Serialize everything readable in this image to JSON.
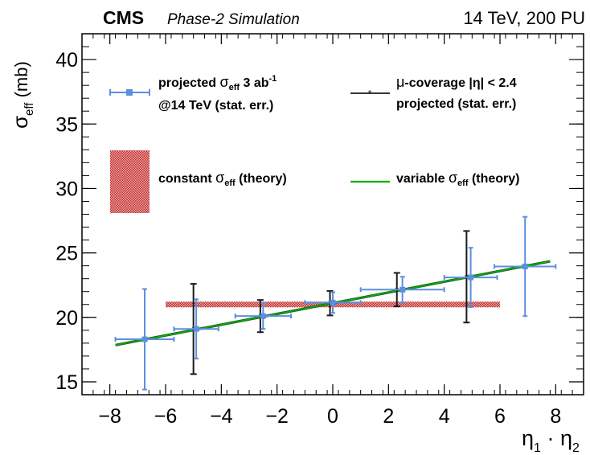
{
  "header": {
    "experiment": "CMS",
    "status": "Phase-2 Simulation",
    "energy_pileup": "14 TeV, 200 PU"
  },
  "legend": {
    "projected_line1_pre": "projected ",
    "projected_line1_sym": "σ",
    "projected_line1_sub": "eff",
    "projected_line1_post": " 3 ab",
    "projected_line1_sup": "-1",
    "projected_line2": "@14 TeV  (stat. err.)",
    "mu_line1_sym": "μ",
    "mu_line1_text": "-coverage |η| < 2.4",
    "mu_line2": "projected  (stat. err.)",
    "constant_pre": "constant ",
    "constant_sym": "σ",
    "constant_sub": "eff",
    "constant_post": " (theory)",
    "variable_pre": "variable ",
    "variable_sym": "σ",
    "variable_sub": "eff",
    "variable_post": " (theory)"
  },
  "axes": {
    "y_sym": "σ",
    "y_sub": "eff",
    "y_unit": " (mb)",
    "x_eta1": "η",
    "x_sub1": "1",
    "x_dot": " · ",
    "x_eta2": "η",
    "x_sub2": "2"
  },
  "colors": {
    "projected": "#5b8fe0",
    "mu_coverage": "#1a1a1a",
    "constant_band": "#c83c3c",
    "variable_line": "#00b000",
    "variable_line_dark": "#2a5a2a"
  },
  "chart_data": {
    "type": "scatter",
    "xlim": [
      -9,
      9
    ],
    "ylim": [
      14,
      42
    ],
    "x_ticks": [
      -8,
      -6,
      -4,
      -2,
      0,
      2,
      4,
      6,
      8
    ],
    "y_ticks": [
      15,
      20,
      25,
      30,
      35,
      40
    ],
    "grid": false,
    "series": [
      {
        "name": "projected σeff 3 ab-1 @14 TeV (stat. err.)",
        "points": [
          {
            "x": -6.75,
            "y": 18.3,
            "xerr": 1.05,
            "yerr": 3.9
          },
          {
            "x": -4.9,
            "y": 19.1,
            "xerr": 0.8,
            "yerr": 2.3
          },
          {
            "x": -2.5,
            "y": 20.1,
            "xerr": 1.0,
            "yerr": 1.0
          },
          {
            "x": 0.0,
            "y": 21.15,
            "xerr": 1.0,
            "yerr": 0.8
          },
          {
            "x": 2.5,
            "y": 22.15,
            "xerr": 1.5,
            "yerr": 1.0
          },
          {
            "x": 4.95,
            "y": 23.1,
            "xerr": 0.95,
            "yerr": 2.3
          },
          {
            "x": 6.9,
            "y": 23.95,
            "xerr": 1.1,
            "yerr": 3.85
          }
        ]
      },
      {
        "name": "μ-coverage |η| < 2.4 projected (stat. err.)",
        "points": [
          {
            "x": -5.0,
            "y": 19.1,
            "yerr": 3.5
          },
          {
            "x": -2.6,
            "y": 20.1,
            "yerr": 1.25
          },
          {
            "x": -0.1,
            "y": 21.1,
            "yerr": 0.95
          },
          {
            "x": 2.3,
            "y": 22.15,
            "yerr": 1.3
          },
          {
            "x": 4.8,
            "y": 23.15,
            "yerr": 3.55
          }
        ]
      },
      {
        "name": "constant σeff (theory)",
        "type": "band",
        "x_range": [
          -6,
          6
        ],
        "y_value": 21.0,
        "y_halfwidth": 0.22
      },
      {
        "name": "variable σeff (theory)",
        "type": "line",
        "x": [
          -7.8,
          7.8
        ],
        "y": [
          17.85,
          24.35
        ]
      }
    ]
  }
}
